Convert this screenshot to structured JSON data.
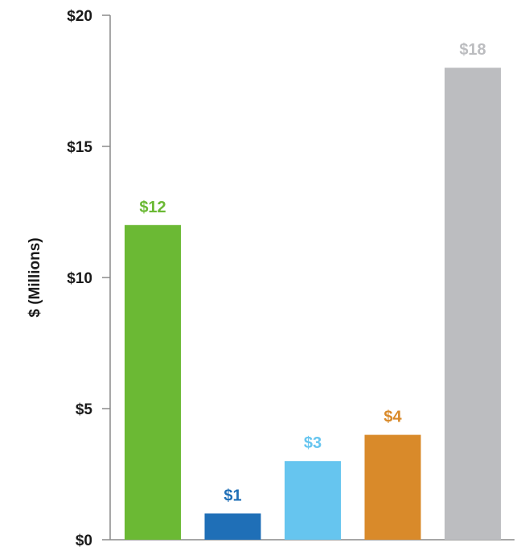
{
  "chart_data": {
    "type": "bar",
    "title": "",
    "xlabel": "",
    "ylabel": "$ (Millions)",
    "ylim": [
      0,
      20
    ],
    "y_ticks": [
      0,
      5,
      10,
      15,
      20
    ],
    "y_tick_labels": [
      "$0",
      "$5",
      "$10",
      "$15",
      "$20"
    ],
    "categories": [
      "",
      "",
      "",
      "",
      ""
    ],
    "values": [
      12,
      1,
      3,
      4,
      18
    ],
    "data_labels": [
      "$12",
      "$1",
      "$3",
      "$4",
      "$18"
    ],
    "bar_colors": [
      "#6bb934",
      "#1f6fb7",
      "#66c5ef",
      "#d98a2a",
      "#bcbdc0"
    ],
    "label_colors": [
      "#6bb934",
      "#1f6fb7",
      "#66c5ef",
      "#d98a2a",
      "#bcbdc0"
    ],
    "grid": false,
    "legend": "none"
  }
}
